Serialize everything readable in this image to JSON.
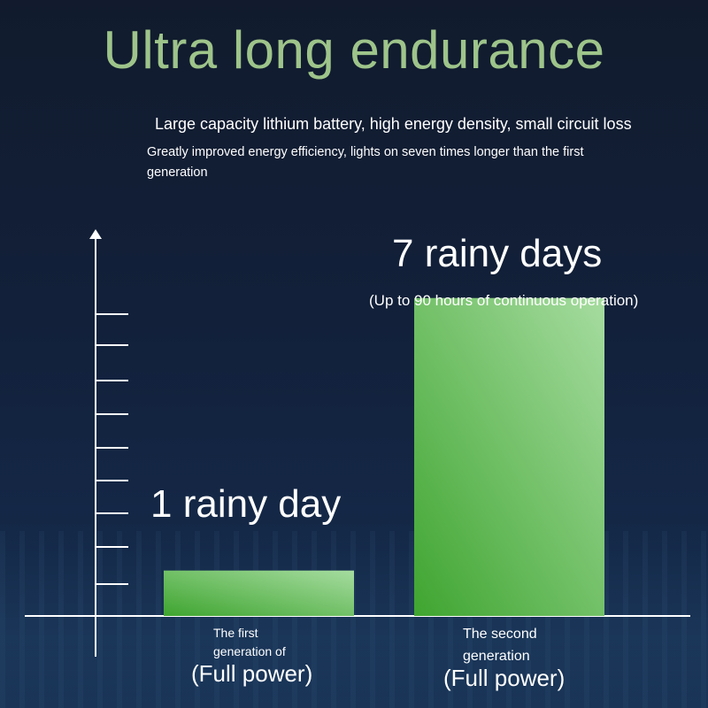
{
  "header": {
    "title": "Ultra long endurance",
    "subtitle_line1": "Large capacity lithium battery, high energy density, small circuit loss",
    "subtitle_line2": "Greatly improved energy efficiency, lights on seven times longer than the first generation"
  },
  "colors": {
    "title": "#9ec48a",
    "bar_dark": "#3fa530",
    "bar_light": "#a6dca0",
    "axis": "#ffffff"
  },
  "chart_data": {
    "type": "bar",
    "categories": [
      "The first generation of (Full power)",
      "The second generation (Full power)"
    ],
    "values": [
      1,
      7
    ],
    "value_labels": [
      "1 rainy day",
      "7 rainy days"
    ],
    "annotations": [
      "(Up to 90 hours of continuous operation)"
    ],
    "unit": "rainy days",
    "ylim": [
      0,
      8.3
    ],
    "grid": false,
    "legend": "none"
  },
  "categories_text": {
    "first_small_line1": "The first",
    "first_small_line2": "generation of",
    "first_big": "(Full power)",
    "second_small_line1": "The second",
    "second_small_line2": "generation",
    "second_big": "(Full power)"
  }
}
